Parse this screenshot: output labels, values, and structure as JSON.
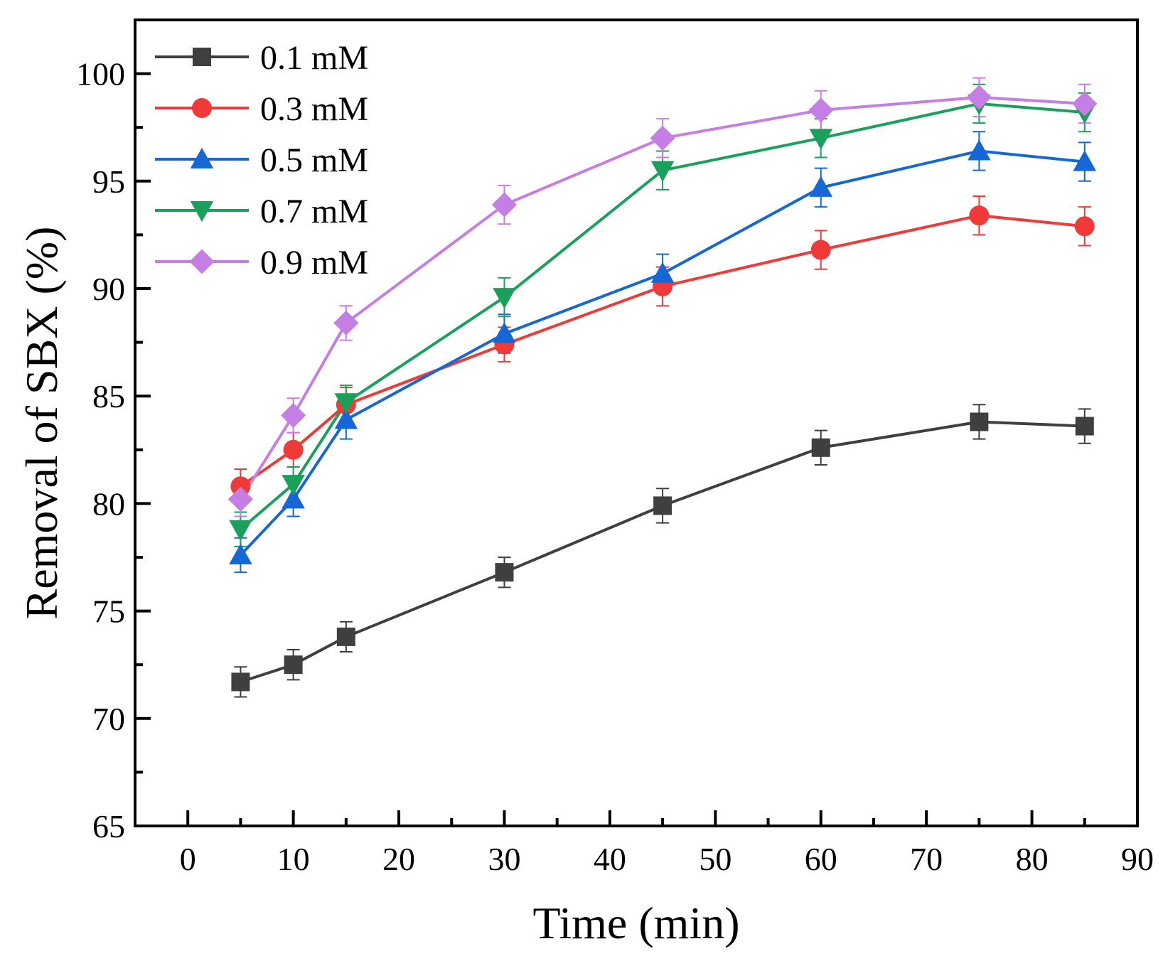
{
  "chart_data": {
    "type": "line",
    "title": "",
    "xlabel": "Time (min)",
    "ylabel": "Removal of SBX (%)",
    "xlim": [
      -5,
      90
    ],
    "ylim": [
      65,
      102.5
    ],
    "xticks": [
      0,
      10,
      20,
      30,
      40,
      50,
      60,
      70,
      80,
      90
    ],
    "yticks": [
      65,
      70,
      75,
      80,
      85,
      90,
      95,
      100
    ],
    "grid": false,
    "legend_position": "top-left",
    "x": [
      5,
      10,
      15,
      30,
      45,
      60,
      75,
      85
    ],
    "series": [
      {
        "name": "0.1 mM",
        "color": "#3f3f3f",
        "marker": "square",
        "values": [
          71.7,
          72.5,
          73.8,
          76.8,
          79.9,
          82.6,
          83.8,
          83.6
        ],
        "errors": [
          0.7,
          0.7,
          0.7,
          0.7,
          0.8,
          0.8,
          0.8,
          0.8
        ]
      },
      {
        "name": "0.3 mM",
        "color": "#f03a3a",
        "marker": "circle",
        "values": [
          80.8,
          82.5,
          84.6,
          87.4,
          90.1,
          91.8,
          93.4,
          92.9
        ],
        "errors": [
          0.8,
          0.8,
          0.8,
          0.8,
          0.9,
          0.9,
          0.9,
          0.9
        ]
      },
      {
        "name": "0.5 mM",
        "color": "#1566d6",
        "marker": "triangle-up",
        "values": [
          77.6,
          80.2,
          83.9,
          87.9,
          90.7,
          94.7,
          96.4,
          95.9
        ],
        "errors": [
          0.8,
          0.8,
          0.9,
          0.9,
          0.9,
          0.9,
          0.9,
          0.9
        ]
      },
      {
        "name": "0.7 mM",
        "color": "#19a05a",
        "marker": "triangle-down",
        "values": [
          78.8,
          80.9,
          84.7,
          89.6,
          95.5,
          97.0,
          98.6,
          98.2
        ],
        "errors": [
          0.8,
          0.8,
          0.8,
          0.9,
          0.9,
          0.9,
          0.9,
          0.9
        ]
      },
      {
        "name": "0.9 mM",
        "color": "#c57ee3",
        "marker": "diamond",
        "values": [
          80.2,
          84.1,
          88.4,
          93.9,
          97.0,
          98.3,
          98.9,
          98.6
        ],
        "errors": [
          0.8,
          0.8,
          0.8,
          0.9,
          0.9,
          0.9,
          0.9,
          0.9
        ]
      }
    ]
  }
}
